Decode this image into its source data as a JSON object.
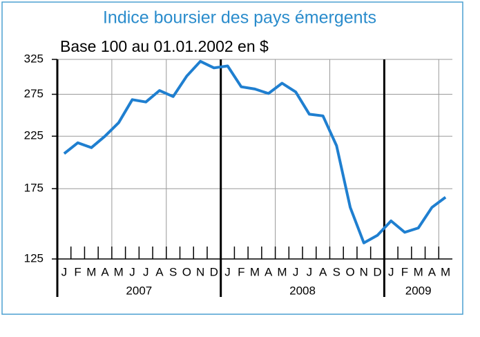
{
  "chart_data": {
    "type": "line",
    "title": "Indice boursier des pays émergents",
    "subtitle": "Base 100 au 01.01.2002 en $",
    "years": [
      {
        "name": "2007",
        "months": [
          "J",
          "F",
          "M",
          "A",
          "M",
          "J",
          "J",
          "A",
          "S",
          "O",
          "N",
          "D"
        ]
      },
      {
        "name": "2008",
        "months": [
          "J",
          "F",
          "M",
          "A",
          "M",
          "J",
          "J",
          "A",
          "S",
          "O",
          "N",
          "D"
        ]
      },
      {
        "name": "2009",
        "months": [
          "J",
          "F",
          "M",
          "A",
          "M"
        ]
      }
    ],
    "series": [
      {
        "name": "Indice",
        "color": "#1f7fd0",
        "values": [
          207,
          218,
          213,
          225,
          240,
          268,
          265,
          280,
          272,
          300,
          322,
          312,
          315,
          285,
          282,
          276,
          290,
          278,
          250,
          248,
          215,
          160,
          135,
          140,
          150,
          142,
          145,
          160,
          168
        ]
      }
    ],
    "ylim": [
      125,
      325
    ],
    "yticks": [
      125,
      175,
      225,
      275,
      325
    ],
    "log_scale": true,
    "grid": true
  }
}
